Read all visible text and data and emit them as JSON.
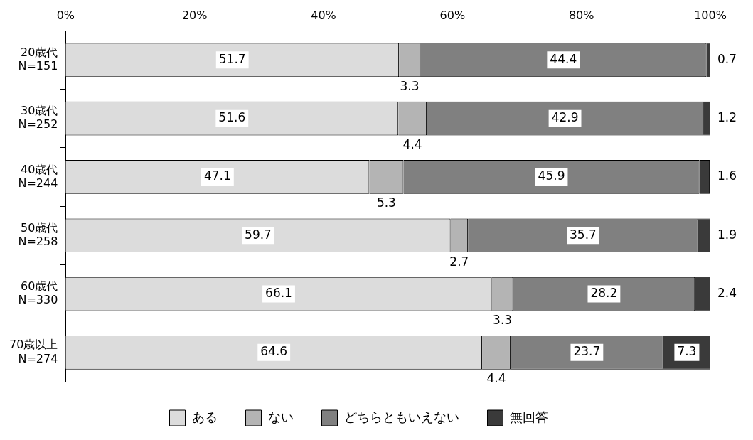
{
  "chart_data": {
    "type": "bar",
    "orientation": "horizontal",
    "stacked": true,
    "categories": [
      "20歳代\nN=151",
      "30歳代\nN=252",
      "40歳代\nN=244",
      "50歳代\nN=258",
      "60歳代\nN=330",
      "70歳以上\nN=274"
    ],
    "series": [
      {
        "name": "ある",
        "color": "#dcdcdc",
        "values": [
          51.7,
          51.6,
          47.1,
          59.7,
          66.1,
          64.6
        ]
      },
      {
        "name": "ない",
        "color": "#b4b4b4",
        "values": [
          3.3,
          4.4,
          5.3,
          2.7,
          3.3,
          4.4
        ]
      },
      {
        "name": "どちらともいえない",
        "color": "#808080",
        "values": [
          44.4,
          42.9,
          45.9,
          35.7,
          28.2,
          23.7
        ]
      },
      {
        "name": "無回答",
        "color": "#3a3a3a",
        "values": [
          0.7,
          1.2,
          1.6,
          1.9,
          2.4,
          7.3
        ]
      }
    ],
    "xlim": [
      0,
      100
    ],
    "xticks": [
      {
        "value": 0,
        "label": "0%"
      },
      {
        "value": 20,
        "label": "20%"
      },
      {
        "value": 40,
        "label": "40%"
      },
      {
        "value": 60,
        "label": "60%"
      },
      {
        "value": 80,
        "label": "80%"
      },
      {
        "value": 100,
        "label": "100%"
      }
    ],
    "grid": false,
    "legend": "bottom",
    "data_labels": true
  }
}
